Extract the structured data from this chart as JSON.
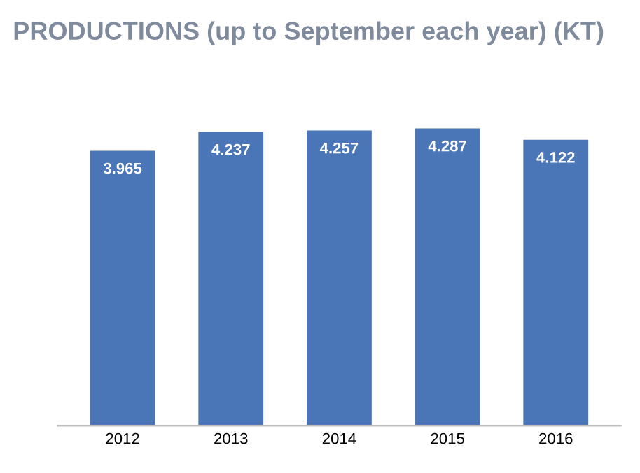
{
  "chart_data": {
    "type": "bar",
    "title": "PRODUCTIONS (up to September each year) (KT)",
    "categories": [
      "2012",
      "2013",
      "2014",
      "2015",
      "2016"
    ],
    "values": [
      3.965,
      4.237,
      4.257,
      4.287,
      4.122
    ],
    "color": "#4a76b8",
    "data_labels": true,
    "grid": false,
    "legend": false
  }
}
